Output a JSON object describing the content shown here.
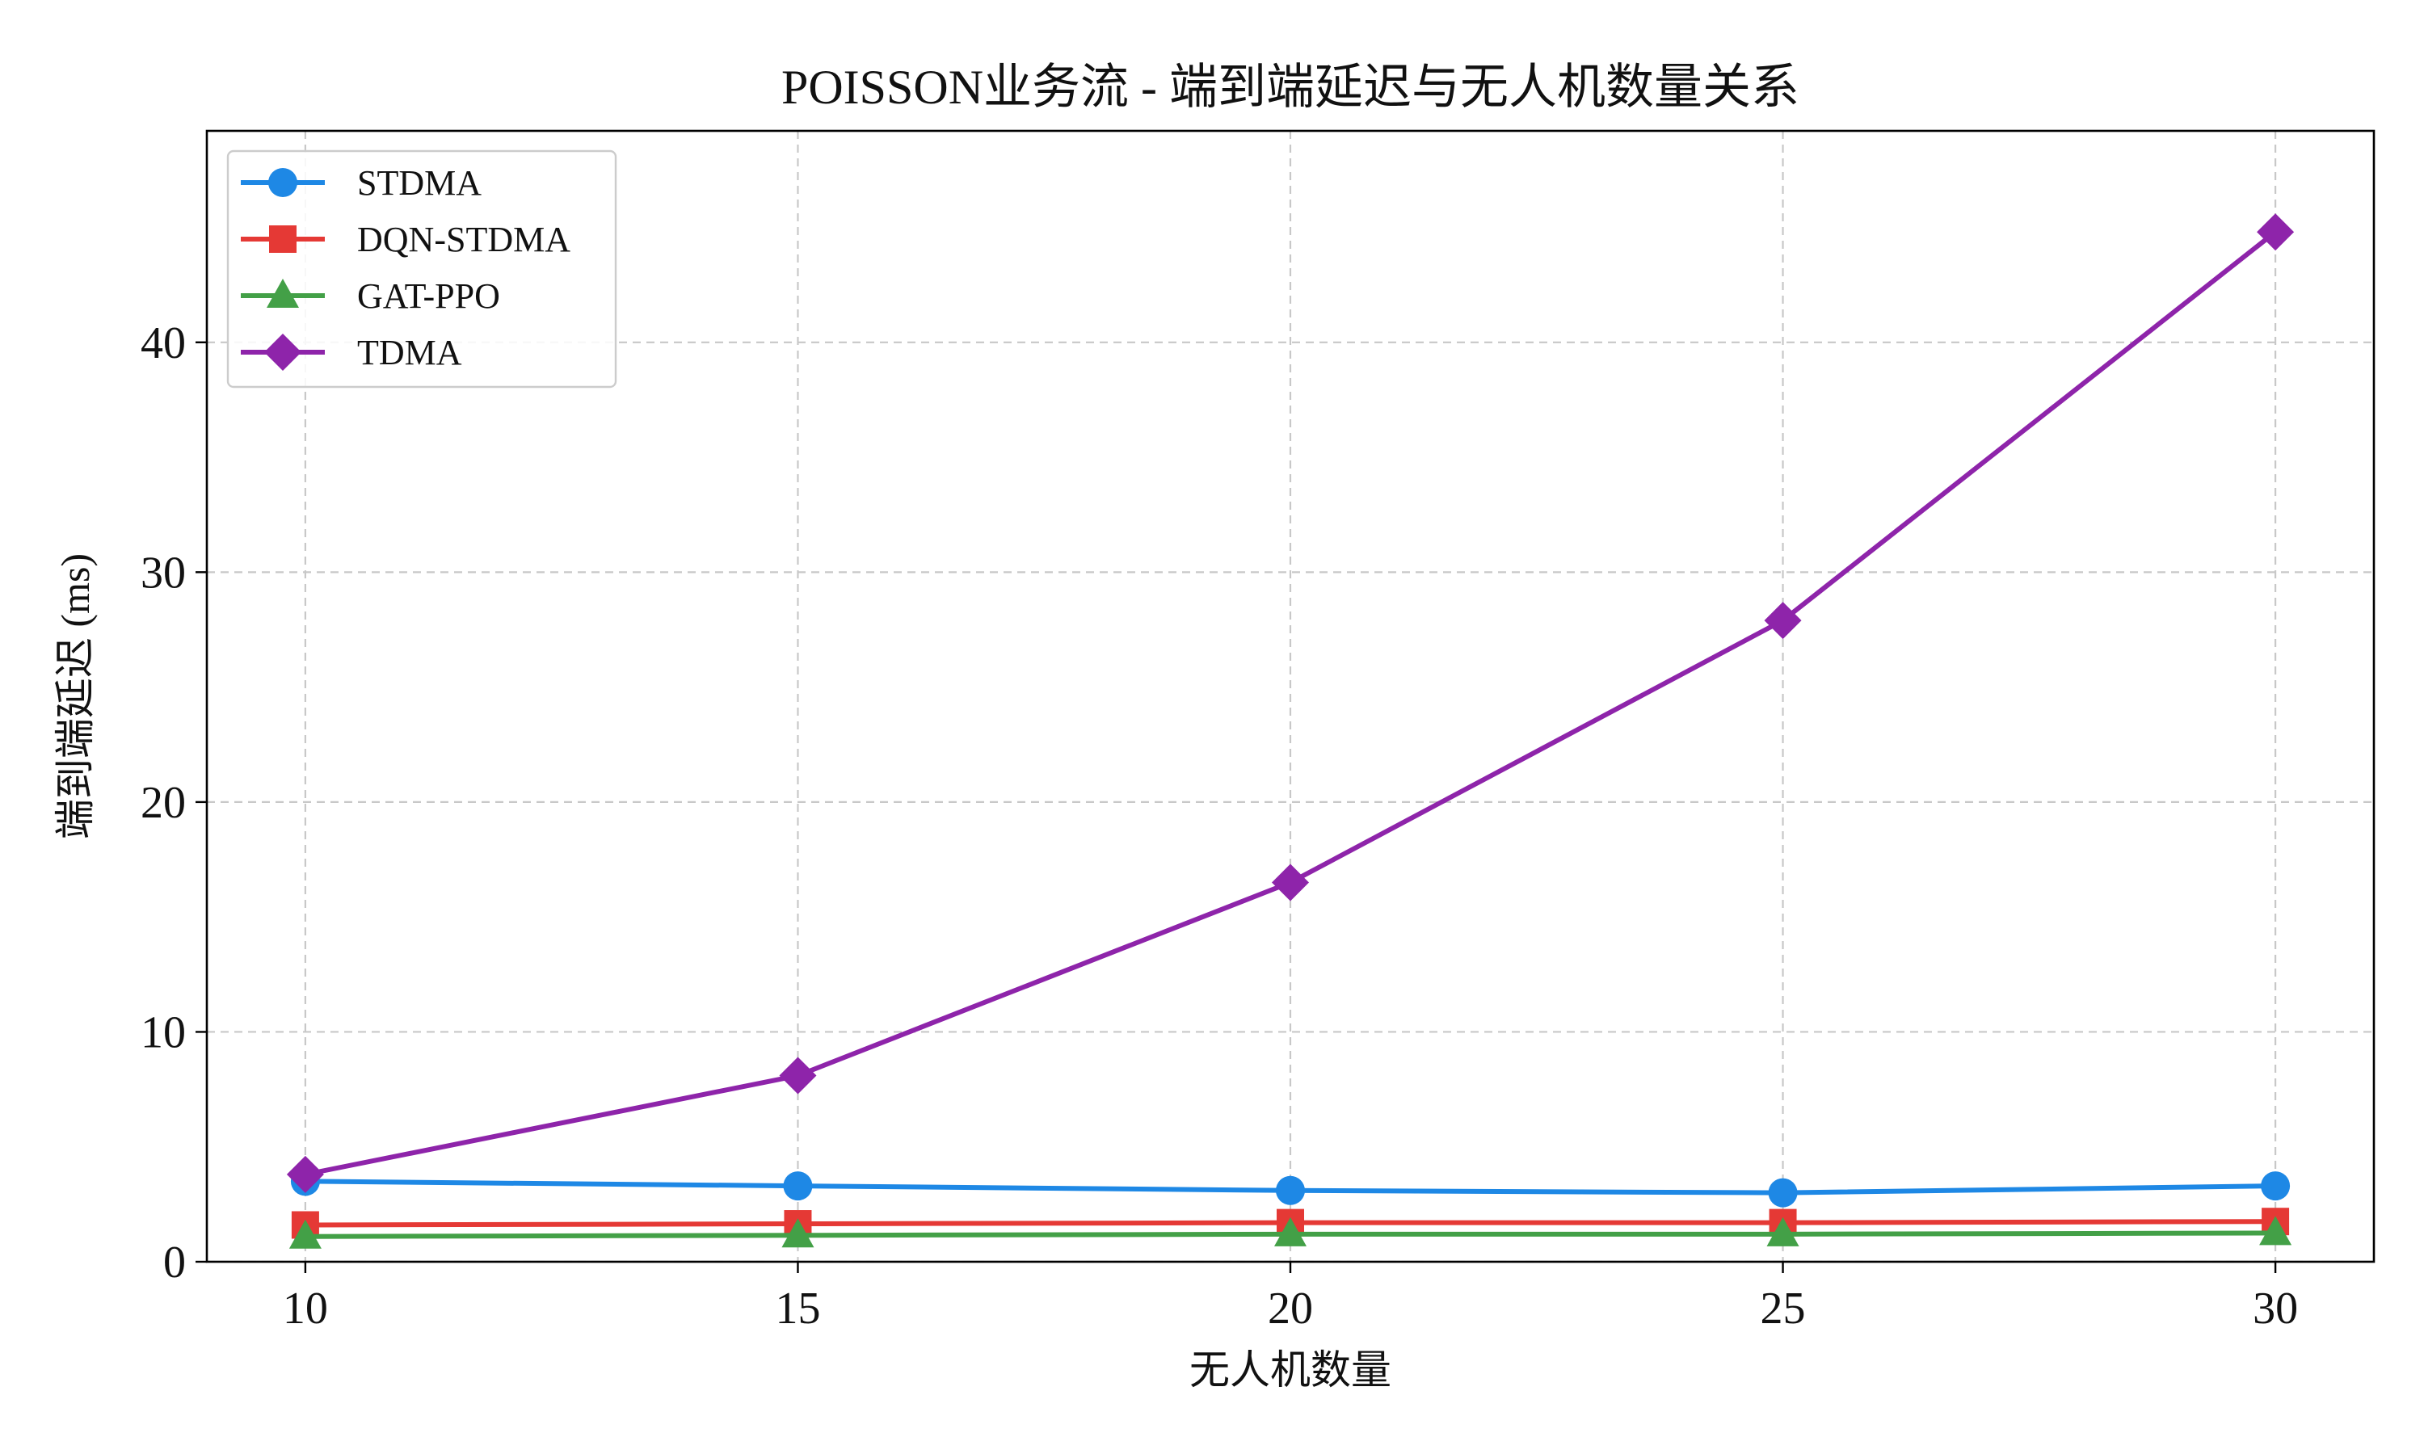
{
  "chart_data": {
    "type": "line",
    "title": "POISSON业务流 - 端到端延迟与无人机数量关系",
    "xlabel": "无人机数量",
    "ylabel": "端到端延迟 (ms)",
    "x": [
      10,
      15,
      20,
      25,
      30
    ],
    "xlim": [
      9,
      31
    ],
    "ylim": [
      0,
      49.2
    ],
    "xticks": [
      10,
      15,
      20,
      25,
      30
    ],
    "yticks": [
      0,
      10,
      20,
      30,
      40
    ],
    "grid": true,
    "legend_position": "top-left",
    "series": [
      {
        "name": "STDMA",
        "color": "#1e88e5",
        "marker": "circle",
        "values": [
          3.5,
          3.3,
          3.1,
          3.0,
          3.3
        ]
      },
      {
        "name": "DQN-STDMA",
        "color": "#e53935",
        "marker": "square",
        "values": [
          1.6,
          1.65,
          1.7,
          1.7,
          1.75
        ]
      },
      {
        "name": "GAT-PPO",
        "color": "#43a047",
        "marker": "triangle",
        "values": [
          1.1,
          1.15,
          1.2,
          1.2,
          1.25
        ]
      },
      {
        "name": "TDMA",
        "color": "#8e24aa",
        "marker": "diamond",
        "values": [
          3.8,
          8.1,
          16.5,
          27.9,
          44.8
        ]
      }
    ]
  }
}
